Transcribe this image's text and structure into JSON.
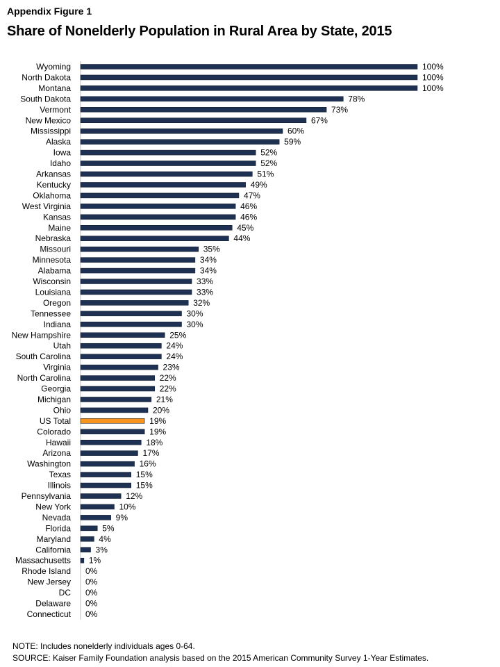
{
  "header": {
    "figure_label": "Appendix Figure 1",
    "title": "Share of Nonelderly Population in Rural Area by State, 2015"
  },
  "chart_data": {
    "type": "bar",
    "orientation": "horizontal",
    "xlim": [
      0,
      100
    ],
    "value_suffix": "%",
    "bar_color": "#1f3152",
    "highlight_color": "#f7941d",
    "highlight_category": "US Total",
    "categories": [
      "Wyoming",
      "North Dakota",
      "Montana",
      "South Dakota",
      "Vermont",
      "New Mexico",
      "Mississippi",
      "Alaska",
      "Iowa",
      "Idaho",
      "Arkansas",
      "Kentucky",
      "Oklahoma",
      "West Virginia",
      "Kansas",
      "Maine",
      "Nebraska",
      "Missouri",
      "Minnesota",
      "Alabama",
      "Wisconsin",
      "Louisiana",
      "Oregon",
      "Tennessee",
      "Indiana",
      "New Hampshire",
      "Utah",
      "South Carolina",
      "Virginia",
      "North Carolina",
      "Georgia",
      "Michigan",
      "Ohio",
      "US Total",
      "Colorado",
      "Hawaii",
      "Arizona",
      "Washington",
      "Texas",
      "Illinois",
      "Pennsylvania",
      "New York",
      "Nevada",
      "Florida",
      "Maryland",
      "California",
      "Massachusetts",
      "Rhode Island",
      "New Jersey",
      "DC",
      "Delaware",
      "Connecticut"
    ],
    "values": [
      100,
      100,
      100,
      78,
      73,
      67,
      60,
      59,
      52,
      52,
      51,
      49,
      47,
      46,
      46,
      45,
      44,
      35,
      34,
      34,
      33,
      33,
      32,
      30,
      30,
      25,
      24,
      24,
      23,
      22,
      22,
      21,
      20,
      19,
      19,
      18,
      17,
      16,
      15,
      15,
      12,
      10,
      9,
      5,
      4,
      3,
      1,
      0,
      0,
      0,
      0,
      0
    ]
  },
  "notes": {
    "note": "NOTE: Includes nonelderly individuals ages 0-64.",
    "source": "SOURCE: Kaiser Family Foundation analysis based on the 2015 American Community Survey 1-Year Estimates."
  }
}
